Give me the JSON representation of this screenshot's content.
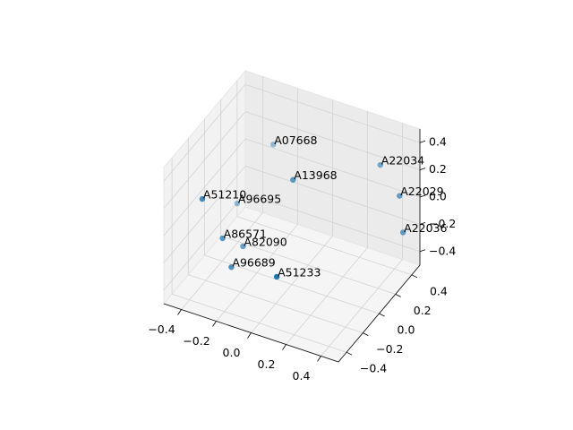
{
  "chart_data": {
    "type": "scatter3d",
    "point_labels": [
      "A07668",
      "A13968",
      "A22034",
      "A22029",
      "A22036",
      "A51210",
      "A96695",
      "A86571",
      "A82090",
      "A96689",
      "A51233"
    ],
    "x": [
      -0.2,
      -0.04,
      0.32,
      0.43,
      0.45,
      -0.42,
      -0.36,
      -0.35,
      -0.28,
      -0.3,
      -0.04
    ],
    "y": [
      0.2,
      0.1,
      0.4,
      0.4,
      0.4,
      -0.2,
      0.1,
      -0.1,
      0,
      -0.1,
      -0.1
    ],
    "z": [
      0.3,
      0.18,
      0.23,
      0.05,
      -0.21,
      0.09,
      -0.13,
      -0.24,
      -0.34,
      -0.43,
      -0.39
    ],
    "color": "#1f77b4",
    "xlim": [
      -0.5,
      0.5
    ],
    "ylim": [
      -0.5,
      0.5
    ],
    "zlim": [
      -0.5,
      0.5
    ],
    "xticks": [
      {
        "value": -0.4,
        "label": "−0.4"
      },
      {
        "value": -0.2,
        "label": "−0.2"
      },
      {
        "value": 0,
        "label": "0.0"
      },
      0.2,
      0.4
    ],
    "yticks": [
      {
        "value": -0.4,
        "label": "−0.4"
      },
      {
        "value": -0.2,
        "label": "−0.2"
      },
      {
        "value": 0,
        "label": "0.0"
      },
      0.2,
      0.4
    ],
    "zticks": [
      {
        "value": -0.4,
        "label": "−0.4"
      },
      {
        "value": -0.2,
        "label": "−0.2"
      },
      {
        "value": 0,
        "label": "0.0"
      },
      0.2,
      0.4
    ],
    "grid": true
  }
}
